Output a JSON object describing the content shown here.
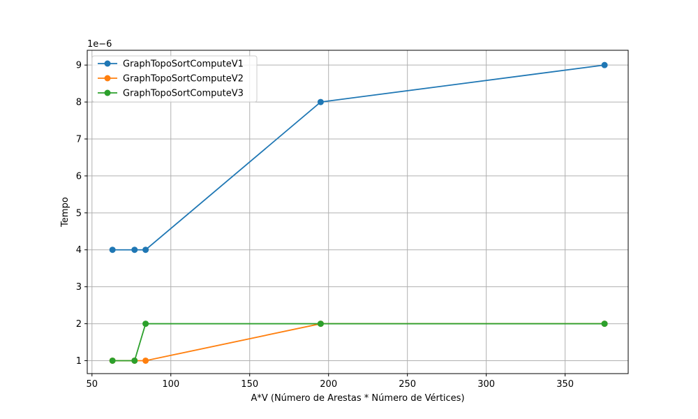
{
  "chart_data": {
    "type": "line",
    "xlabel": "A*V (Número de Arestas * Número de Vértices)",
    "ylabel": "Tempo",
    "y_offset_label": "1e−6",
    "x_ticks": [
      50,
      100,
      150,
      200,
      250,
      300,
      350
    ],
    "x_tick_labels": [
      "50",
      "100",
      "150",
      "200",
      "250",
      "300",
      "350"
    ],
    "y_ticks": [
      1,
      2,
      3,
      4,
      5,
      6,
      7,
      8,
      9
    ],
    "y_tick_labels": [
      "1",
      "2",
      "3",
      "4",
      "5",
      "6",
      "7",
      "8",
      "9"
    ],
    "xlim": [
      47,
      390
    ],
    "ylim": [
      0.65,
      9.4
    ],
    "y_scale": "1e-6",
    "grid": true,
    "legend_position": "top-left",
    "series": [
      {
        "name": "GraphTopoSortComputeV1",
        "color": "#1f77b4",
        "x": [
          63,
          77,
          84,
          195,
          375
        ],
        "y": [
          4,
          4,
          4,
          8,
          9
        ]
      },
      {
        "name": "GraphTopoSortComputeV2",
        "color": "#ff7f0e",
        "x": [
          63,
          77,
          84,
          195,
          375
        ],
        "y": [
          1,
          1,
          1,
          2,
          2
        ]
      },
      {
        "name": "GraphTopoSortComputeV3",
        "color": "#2ca02c",
        "x": [
          63,
          77,
          84,
          195,
          375
        ],
        "y": [
          1,
          1,
          2,
          2,
          2
        ]
      }
    ]
  }
}
